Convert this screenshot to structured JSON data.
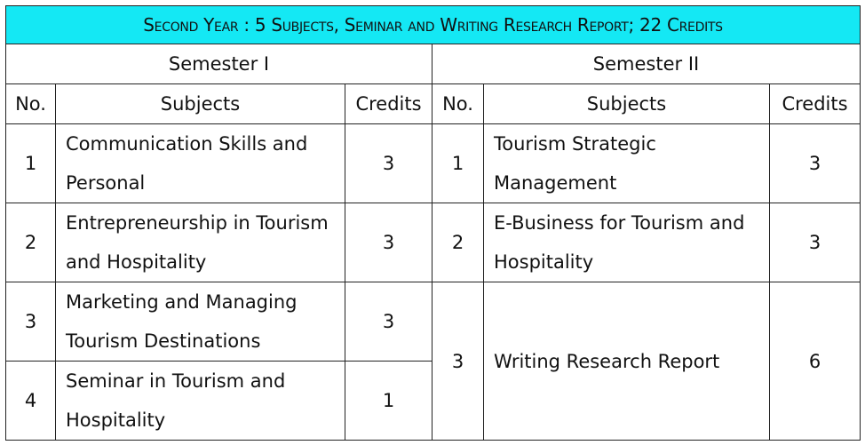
{
  "title": "Second Year : 5 Subjects, Seminar and Writing Research Report; 22 Credits",
  "semesters": [
    "Semester I",
    "Semester II"
  ],
  "columns": {
    "no": "No.",
    "subjects": "Subjects",
    "credits": "Credits"
  },
  "semester1": [
    {
      "no": "1",
      "subject": "Communication Skills and Personal",
      "credits": "3"
    },
    {
      "no": "2",
      "subject": "Entrepreneurship in Tourism and Hospitality",
      "credits": "3"
    },
    {
      "no": "3",
      "subject": "Marketing and Managing Tourism Destinations",
      "credits": "3"
    },
    {
      "no": "4",
      "subject": "Seminar in Tourism and Hospitality",
      "credits": "1"
    }
  ],
  "semester2": [
    {
      "no": "1",
      "subject": "Tourism Strategic Management",
      "credits": "3"
    },
    {
      "no": "2",
      "subject": "E-Business for Tourism and Hospitality",
      "credits": "3"
    },
    {
      "no": "3",
      "subject": "Writing Research Report",
      "credits": "6"
    }
  ]
}
